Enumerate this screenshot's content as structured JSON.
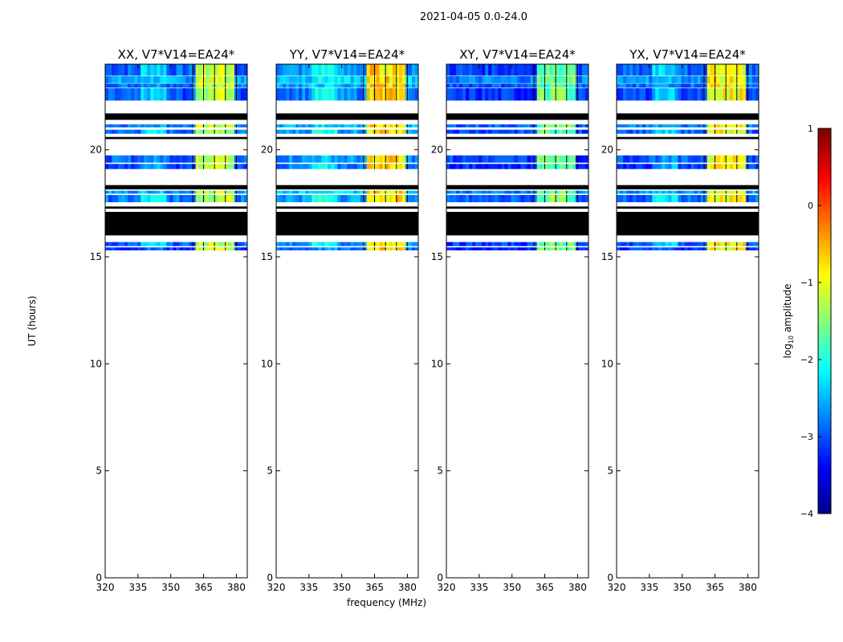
{
  "figure": {
    "supertitle": "2021-04-05 0.0-24.0",
    "ylabel": "UT (hours)",
    "xlabel": "frequency (MHz)",
    "colorbar_label_prefix": "log",
    "colorbar_label_sub": "10",
    "colorbar_label_suffix": " amplitude"
  },
  "chart_data": {
    "type": "heatmap",
    "xlim": [
      320,
      385
    ],
    "ylim": [
      0,
      24
    ],
    "x_ticks": [
      320,
      335,
      350,
      365,
      380
    ],
    "y_ticks": [
      0,
      5,
      10,
      15,
      20
    ],
    "colorbar": {
      "colormap": "jet",
      "range": [
        -4,
        1
      ],
      "ticks": [
        1,
        0,
        -1,
        -2,
        -3,
        -4
      ],
      "tick_labels": [
        "1",
        "0",
        "−1",
        "−2",
        "−3",
        "−4"
      ]
    },
    "bright_band_mhz": [
      360,
      380
    ],
    "bright_band_segments": 4,
    "time_bands": [
      {
        "start": 23.45,
        "end": 24.0,
        "kind": "data",
        "level": -2.9
      },
      {
        "start": 23.1,
        "end": 23.45,
        "kind": "data",
        "level": -2.3
      },
      {
        "start": 22.9,
        "end": 23.1,
        "kind": "data",
        "level": -2.7
      },
      {
        "start": 22.3,
        "end": 22.9,
        "kind": "data",
        "level": -3.1
      },
      {
        "start": 21.4,
        "end": 21.7,
        "kind": "flagged"
      },
      {
        "start": 21.05,
        "end": 21.2,
        "kind": "data",
        "level": -2.6
      },
      {
        "start": 20.75,
        "end": 20.95,
        "kind": "data",
        "level": -2.8
      },
      {
        "start": 20.5,
        "end": 20.6,
        "kind": "flagged"
      },
      {
        "start": 19.4,
        "end": 19.75,
        "kind": "data",
        "level": -2.9
      },
      {
        "start": 19.1,
        "end": 19.35,
        "kind": "data",
        "level": -3.2
      },
      {
        "start": 18.15,
        "end": 18.35,
        "kind": "flagged"
      },
      {
        "start": 17.95,
        "end": 18.1,
        "kind": "data",
        "level": -2.3
      },
      {
        "start": 17.55,
        "end": 17.9,
        "kind": "data",
        "level": -2.7
      },
      {
        "start": 17.25,
        "end": 17.35,
        "kind": "flagged"
      },
      {
        "start": 16.0,
        "end": 17.1,
        "kind": "flagged"
      },
      {
        "start": 15.5,
        "end": 15.7,
        "kind": "data",
        "level": -3.0
      },
      {
        "start": 15.3,
        "end": 15.45,
        "kind": "data",
        "level": -3.3
      }
    ],
    "panels": [
      {
        "title": "XX, V7*V14=EA24*",
        "bright_level": -1.2,
        "continuum_level": -2.9
      },
      {
        "title": "YY, V7*V14=EA24*",
        "bright_level": -0.7,
        "continuum_level": -2.4
      },
      {
        "title": "XY, V7*V14=EA24*",
        "bright_level": -1.6,
        "continuum_level": -3.2
      },
      {
        "title": "YX, V7*V14=EA24*",
        "bright_level": -0.9,
        "continuum_level": -3.0
      }
    ]
  }
}
